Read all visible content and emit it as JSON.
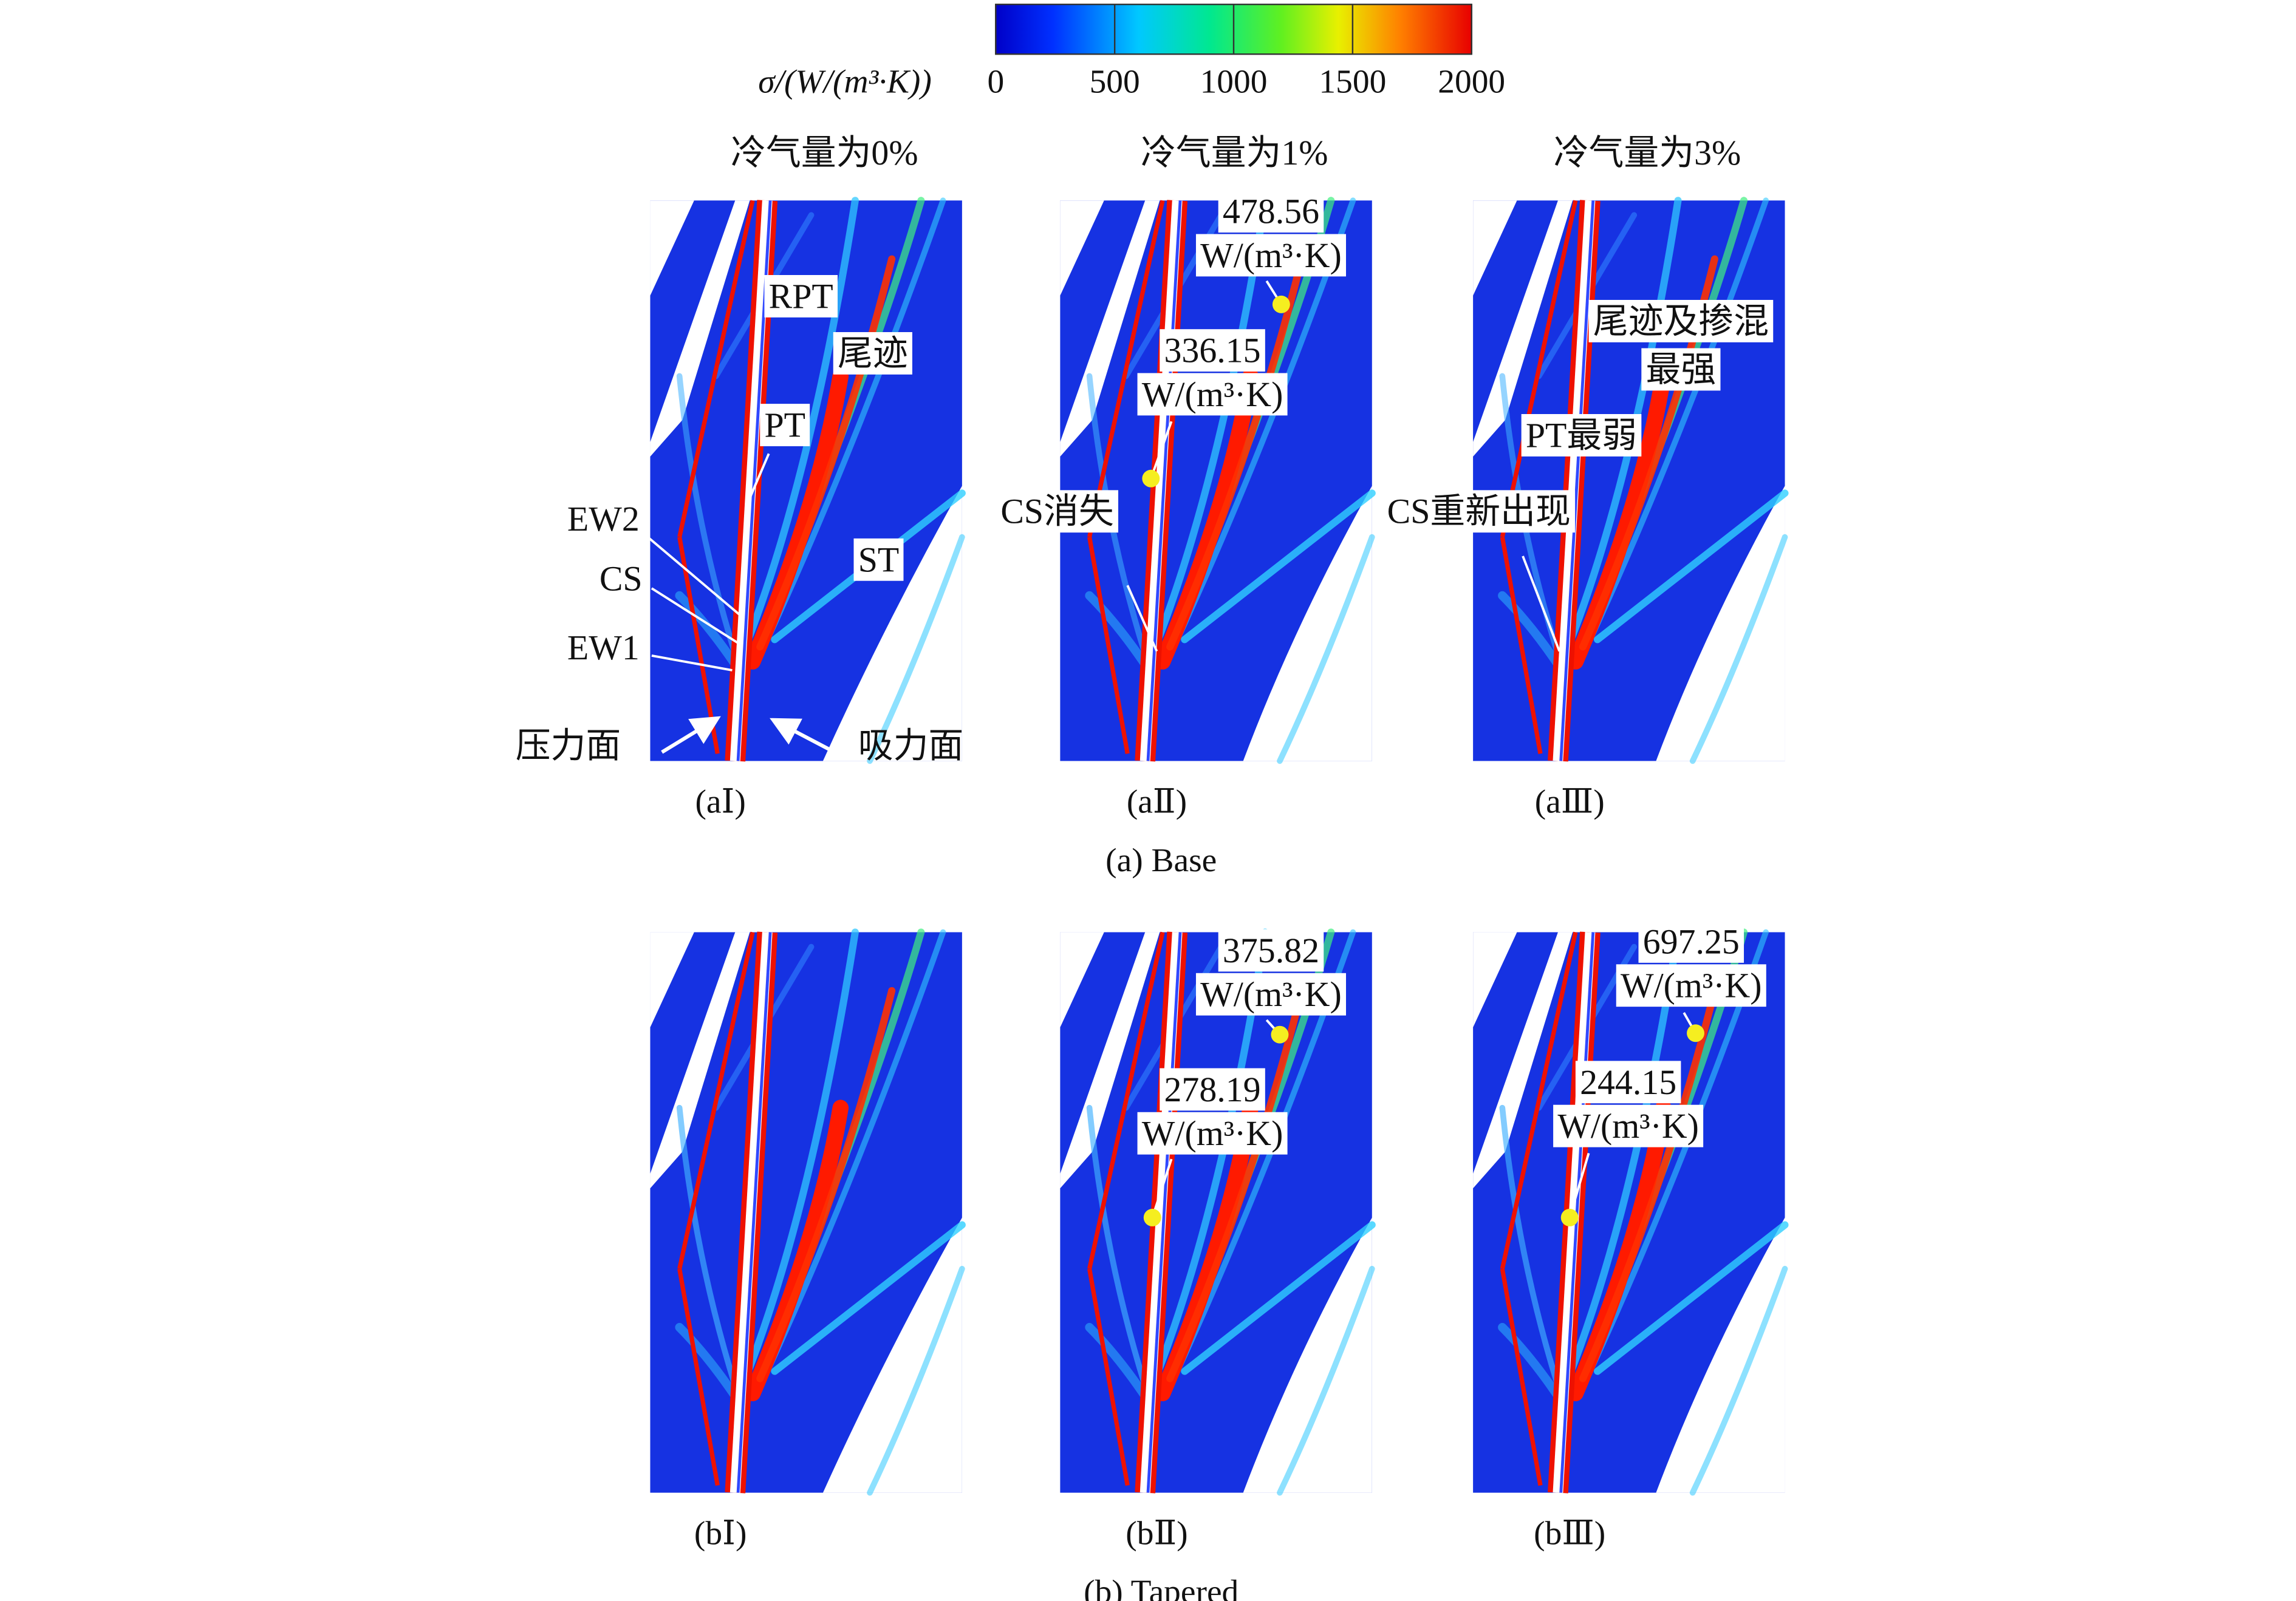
{
  "colorbar": {
    "title": "σ/(W/(m³·K))",
    "range": [
      0,
      2000
    ],
    "ticks": [
      0,
      500,
      1000,
      1500,
      2000
    ]
  },
  "column_headers": [
    "冷气量为0%",
    "冷气量为1%",
    "冷气量为3%"
  ],
  "rows": [
    {
      "caption": "(a) Base",
      "panels": [
        {
          "label": "(aⅠ)",
          "annotations": [
            "RPT",
            "尾迹",
            "PT",
            "EW2",
            "CS",
            "EW1",
            "ST",
            "压力面",
            "吸力面"
          ]
        },
        {
          "label": "(aⅡ)",
          "annotations": [
            "478.56",
            "W/(m³·K)",
            "336.15",
            "W/(m³·K)",
            "CS消失"
          ]
        },
        {
          "label": "(aⅢ)",
          "annotations": [
            "尾迹及掺混",
            "最强",
            "PT最弱",
            "CS重新出现"
          ]
        }
      ]
    },
    {
      "caption": "(b) Tapered",
      "panels": [
        {
          "label": "(bⅠ)",
          "annotations": []
        },
        {
          "label": "(bⅡ)",
          "annotations": [
            "375.82",
            "W/(m³·K)",
            "278.19",
            "W/(m³·K)"
          ]
        },
        {
          "label": "(bⅢ)",
          "annotations": [
            "697.25",
            "W/(m³·K)",
            "244.15",
            "W/(m³·K)"
          ]
        }
      ]
    }
  ]
}
